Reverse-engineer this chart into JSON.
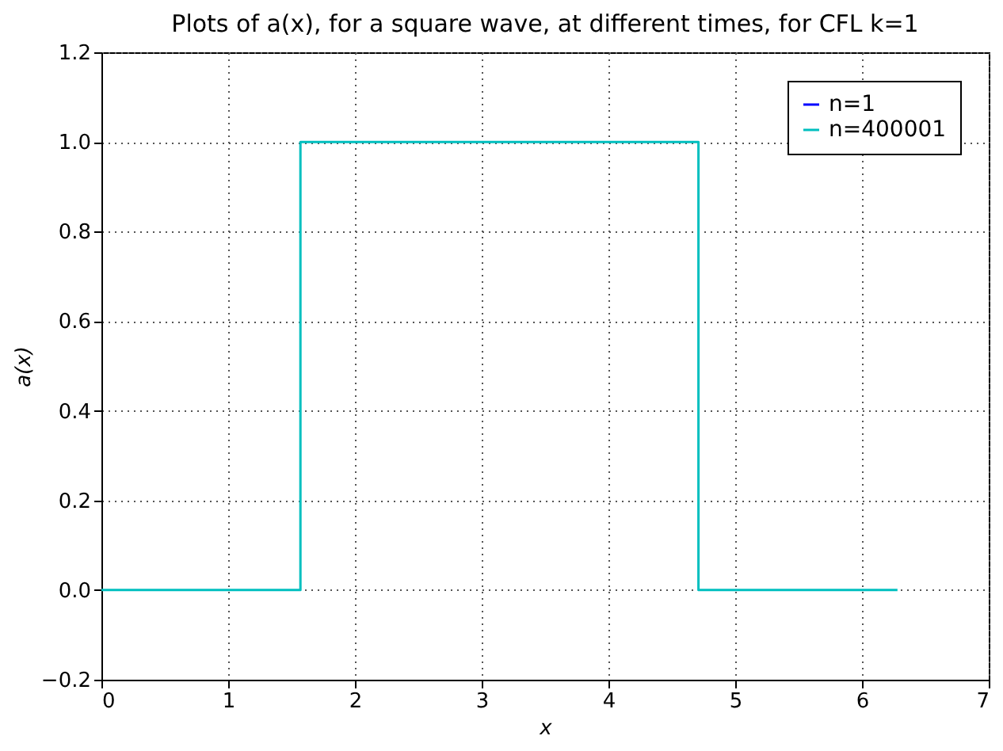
{
  "chart_data": {
    "type": "line",
    "title": "Plots of a(x), for a square wave, at different times, for CFL k=1",
    "xlabel": "x",
    "ylabel": "a(x)",
    "series": [
      {
        "name": "n=1",
        "color": "#0000ff"
      },
      {
        "name": "n=400001",
        "color": "#00bfbf",
        "x": [
          0,
          1.57,
          1.57,
          4.71,
          4.71,
          6.28
        ],
        "values": [
          0,
          0,
          1,
          1,
          0,
          0
        ]
      }
    ],
    "xlim": [
      0,
      7
    ],
    "xticks": [
      0,
      1,
      2,
      3,
      4,
      5,
      6,
      7
    ],
    "ylim": [
      -0.2,
      1.2
    ],
    "yticks": [
      -0.2,
      {
        "value": 0,
        "label": "0.0"
      },
      0.2,
      0.4,
      0.6,
      0.8,
      {
        "value": 1,
        "label": "1.0"
      },
      1.2
    ],
    "grid": true,
    "legend": "top right",
    "line_style": "solid",
    "marker": "none"
  }
}
